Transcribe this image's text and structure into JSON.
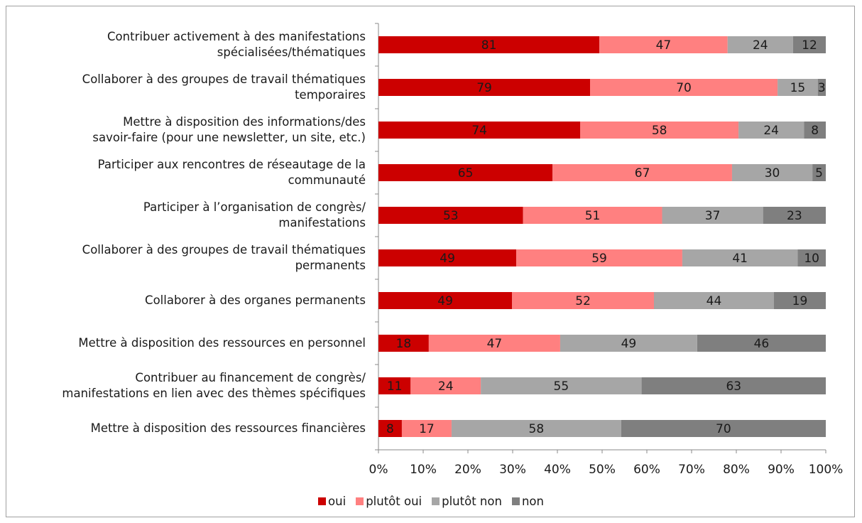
{
  "chart_data": {
    "type": "stacked_bar_percent",
    "categories": [
      "Contribuer activement à des manifestations\nspécialisées/thématiques",
      "Collaborer à des groupes de travail thématiques\ntemporaires",
      "Mettre à disposition des informations/des\nsavoir-faire (pour une newsletter, un site, etc.)",
      "Participer aux rencontres de réseautage de la\ncommunauté",
      "Participer à l’organisation de congrès/\nmanifestations",
      "Collaborer à des groupes de travail thématiques\npermanents",
      "Collaborer à des organes permanents",
      "Mettre à disposition des ressources en personnel",
      "Contribuer au financement de congrès/\nmanifestations en lien avec des thèmes spécifiques",
      "Mettre à disposition des ressources financières"
    ],
    "series": [
      {
        "name": "oui",
        "color": "#cc0000",
        "values": [
          81,
          79,
          74,
          65,
          53,
          49,
          49,
          18,
          11,
          8
        ]
      },
      {
        "name": "plutôt oui",
        "color": "#ff8080",
        "values": [
          47,
          70,
          58,
          67,
          51,
          59,
          52,
          47,
          24,
          17
        ]
      },
      {
        "name": "plutôt non",
        "color": "#a6a6a6",
        "values": [
          24,
          15,
          24,
          30,
          37,
          41,
          44,
          49,
          55,
          58
        ]
      },
      {
        "name": "non",
        "color": "#7f7f7f",
        "values": [
          12,
          3,
          8,
          5,
          23,
          10,
          19,
          46,
          63,
          70
        ]
      }
    ],
    "xlim": [
      0,
      100
    ],
    "xticks": [
      {
        "value": 0,
        "label": "0%"
      },
      {
        "value": 10,
        "label": "10%"
      },
      {
        "value": 20,
        "label": "20%"
      },
      {
        "value": 30,
        "label": "30%"
      },
      {
        "value": 40,
        "label": "40%"
      },
      {
        "value": 50,
        "label": "50%"
      },
      {
        "value": 60,
        "label": "60%"
      },
      {
        "value": 70,
        "label": "70%"
      },
      {
        "value": 80,
        "label": "80%"
      },
      {
        "value": 90,
        "label": "90%"
      },
      {
        "value": 100,
        "label": "100%"
      }
    ],
    "legend": "bottom"
  }
}
